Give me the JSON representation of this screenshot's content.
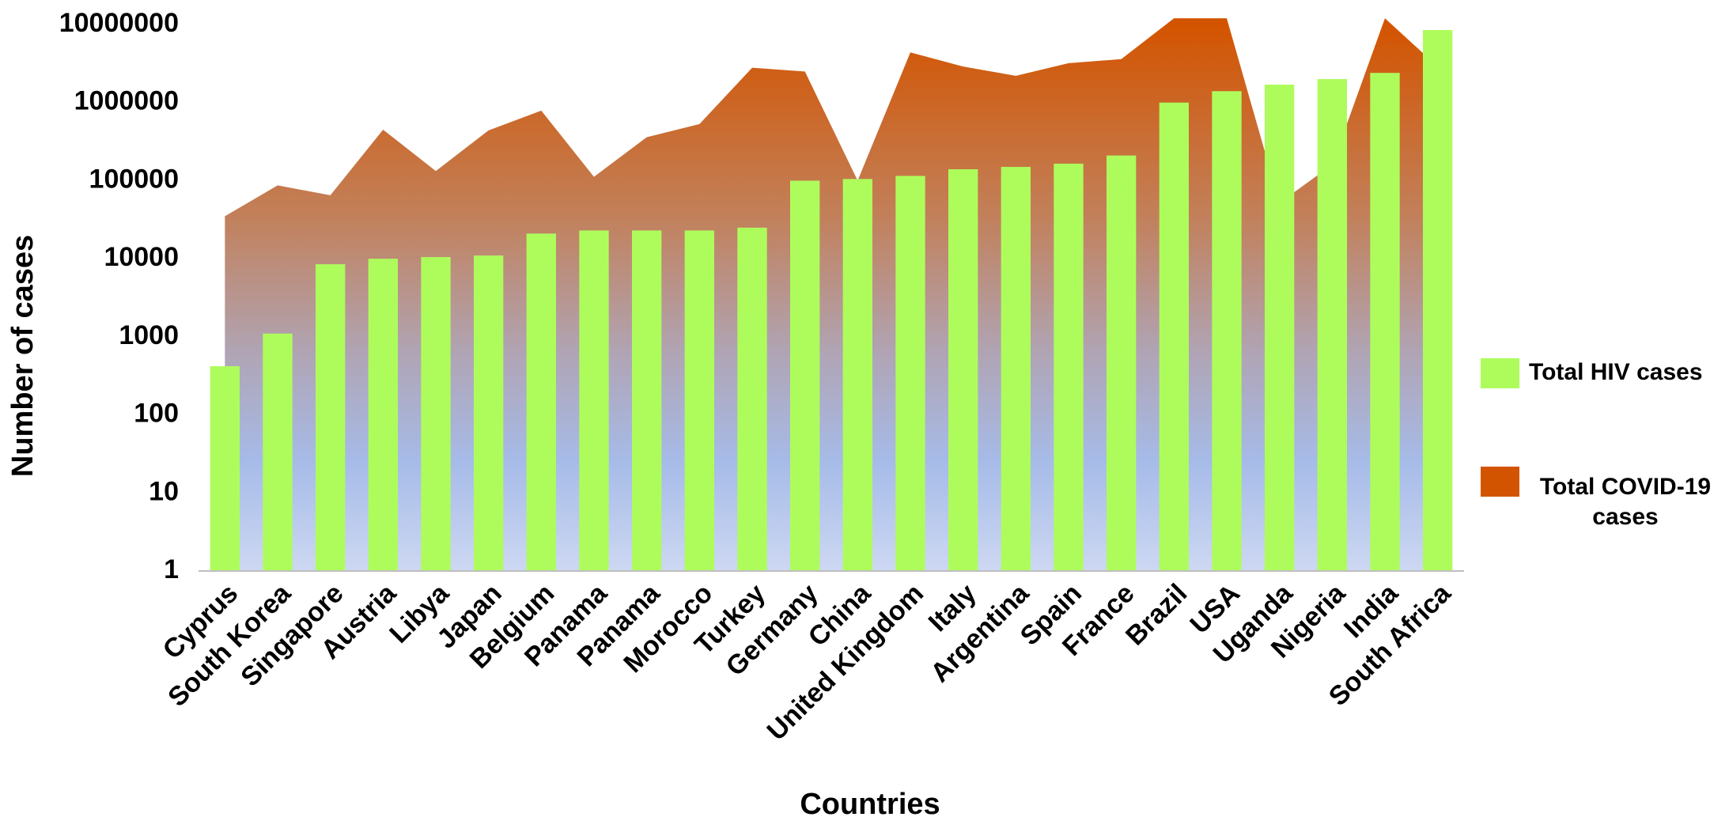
{
  "chart_data": {
    "type": "bar",
    "x_label": "Countries",
    "y_label": "Number of cases",
    "categories": [
      "Cyprus",
      "South Korea",
      "Singapore",
      "Austria",
      "Libya",
      "Japan",
      "Belgium",
      "Panama",
      "Panama",
      "Morocco",
      "Turkey",
      "Germany",
      "China",
      "United Kingdom",
      "Italy",
      "Argentina",
      "Spain",
      "France",
      "Brazil",
      "USA",
      "Uganda",
      "Nigeria",
      "India",
      "South Africa"
    ],
    "series": [
      {
        "name": "Total HIV cases",
        "type": "bar",
        "color": "#aefc5c",
        "values": [
          420,
          1100,
          8500,
          10000,
          10500,
          11000,
          21000,
          23000,
          23000,
          23000,
          25000,
          100000,
          105000,
          115000,
          140000,
          150000,
          165000,
          210000,
          1000000,
          1400000,
          1700000,
          2000000,
          2400000,
          8500000
        ]
      },
      {
        "name": "Total COVID-19 cases",
        "type": "area",
        "color": "#d35400",
        "values": [
          35000,
          87000,
          65000,
          450000,
          133000,
          440000,
          790000,
          112000,
          360000,
          530000,
          2800000,
          2500000,
          100000,
          4400000,
          2900000,
          2200000,
          3200000,
          3600000,
          12000000,
          12000000,
          52000,
          160000,
          12000000,
          2900000
        ]
      }
    ],
    "log_y": true,
    "ylim": [
      1,
      10000000
    ],
    "yticks": [
      1,
      10,
      100,
      1000,
      10000,
      100000,
      1000000,
      10000000
    ],
    "legend": "right"
  }
}
